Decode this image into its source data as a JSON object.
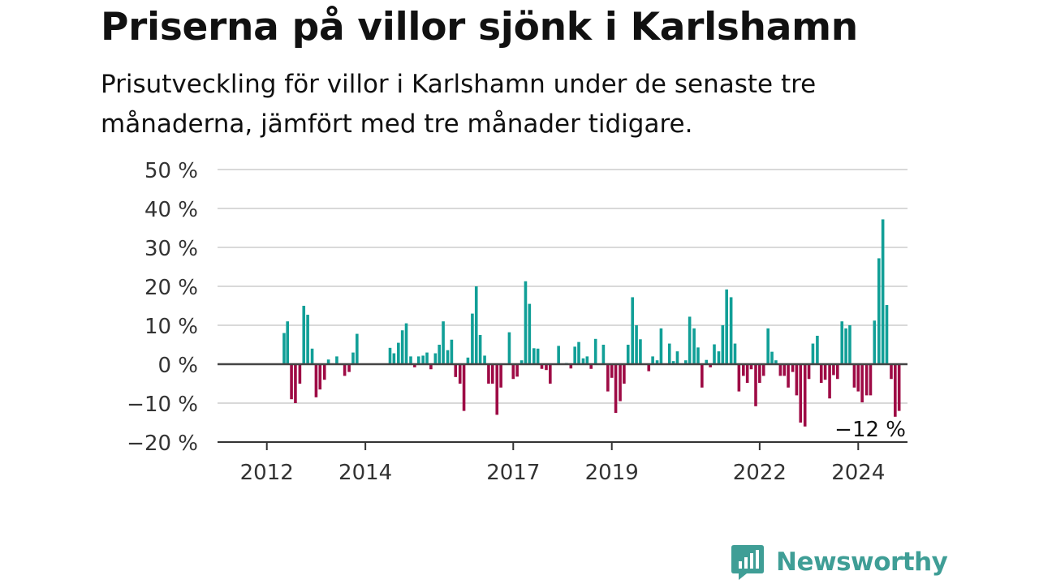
{
  "title": "Priserna på villor sjönk i Karlshamn",
  "subtitle": "Prisutveckling för villor i Karlshamn under de senaste tre månaderna, jämfört med tre månader tidigare.",
  "brand": {
    "name": "Newsworthy",
    "color": "#3f9e96"
  },
  "colors": {
    "positive": "#119f97",
    "negative": "#9e0b45",
    "zero_line": "#444444",
    "grid": "#d9d9d9"
  },
  "chart_data": {
    "type": "bar",
    "grid": "horizontal",
    "ylim": [
      -20,
      50
    ],
    "y_ticks": [
      50,
      40,
      30,
      20,
      10,
      0,
      -10,
      -20
    ],
    "y_tick_labels": [
      "50 %",
      "40 %",
      "30 %",
      "20 %",
      "10 %",
      "0 %",
      "−10 %",
      "−20 %"
    ],
    "x_ticks": [
      {
        "label": "2012",
        "value": 2012.0
      },
      {
        "label": "2014",
        "value": 2014.0
      },
      {
        "label": "2017",
        "value": 2017.0
      },
      {
        "label": "2019",
        "value": 2019.0
      },
      {
        "label": "2022",
        "value": 2022.0
      },
      {
        "label": "2024",
        "value": 2024.0
      }
    ],
    "annotation": {
      "text": "−12 %",
      "value": -12
    },
    "values": [
      {
        "t": 2012.35,
        "v": 8
      },
      {
        "t": 2012.42,
        "v": 11
      },
      {
        "t": 2012.5,
        "v": -9
      },
      {
        "t": 2012.58,
        "v": -10
      },
      {
        "t": 2012.67,
        "v": -5
      },
      {
        "t": 2012.75,
        "v": 15
      },
      {
        "t": 2012.83,
        "v": 12.7
      },
      {
        "t": 2012.92,
        "v": 4
      },
      {
        "t": 2013.0,
        "v": -8.5
      },
      {
        "t": 2013.08,
        "v": -6.5
      },
      {
        "t": 2013.17,
        "v": -4
      },
      {
        "t": 2013.25,
        "v": 1.2
      },
      {
        "t": 2013.42,
        "v": 2
      },
      {
        "t": 2013.58,
        "v": -3
      },
      {
        "t": 2013.67,
        "v": -2
      },
      {
        "t": 2013.75,
        "v": 3
      },
      {
        "t": 2013.83,
        "v": 7.8
      },
      {
        "t": 2014.5,
        "v": 4.2
      },
      {
        "t": 2014.58,
        "v": 2.8
      },
      {
        "t": 2014.67,
        "v": 5.5
      },
      {
        "t": 2014.75,
        "v": 8.7
      },
      {
        "t": 2014.83,
        "v": 10.5
      },
      {
        "t": 2014.92,
        "v": 2
      },
      {
        "t": 2015.0,
        "v": -0.8
      },
      {
        "t": 2015.08,
        "v": 2
      },
      {
        "t": 2015.17,
        "v": 2.2
      },
      {
        "t": 2015.25,
        "v": 3
      },
      {
        "t": 2015.33,
        "v": -1.3
      },
      {
        "t": 2015.42,
        "v": 2.8
      },
      {
        "t": 2015.5,
        "v": 5
      },
      {
        "t": 2015.58,
        "v": 11
      },
      {
        "t": 2015.67,
        "v": 3.6
      },
      {
        "t": 2015.75,
        "v": 6.3
      },
      {
        "t": 2015.83,
        "v": -3.3
      },
      {
        "t": 2015.92,
        "v": -5
      },
      {
        "t": 2016.0,
        "v": -12
      },
      {
        "t": 2016.08,
        "v": 1.7
      },
      {
        "t": 2016.17,
        "v": 13
      },
      {
        "t": 2016.25,
        "v": 20
      },
      {
        "t": 2016.33,
        "v": 7.5
      },
      {
        "t": 2016.42,
        "v": 2.2
      },
      {
        "t": 2016.5,
        "v": -5
      },
      {
        "t": 2016.58,
        "v": -5
      },
      {
        "t": 2016.67,
        "v": -13
      },
      {
        "t": 2016.75,
        "v": -6
      },
      {
        "t": 2016.92,
        "v": 8.2
      },
      {
        "t": 2017.0,
        "v": -3.8
      },
      {
        "t": 2017.08,
        "v": -3.2
      },
      {
        "t": 2017.17,
        "v": 1
      },
      {
        "t": 2017.25,
        "v": 21.3
      },
      {
        "t": 2017.33,
        "v": 15.5
      },
      {
        "t": 2017.42,
        "v": 4.1
      },
      {
        "t": 2017.5,
        "v": 4
      },
      {
        "t": 2017.58,
        "v": -1.2
      },
      {
        "t": 2017.67,
        "v": -1.5
      },
      {
        "t": 2017.75,
        "v": -5
      },
      {
        "t": 2017.92,
        "v": 4.7
      },
      {
        "t": 2018.08,
        "v": 0.3
      },
      {
        "t": 2018.17,
        "v": -1.1
      },
      {
        "t": 2018.25,
        "v": 4.5
      },
      {
        "t": 2018.33,
        "v": 5.7
      },
      {
        "t": 2018.42,
        "v": 1.5
      },
      {
        "t": 2018.5,
        "v": 2
      },
      {
        "t": 2018.58,
        "v": -1.2
      },
      {
        "t": 2018.67,
        "v": 6.5
      },
      {
        "t": 2018.83,
        "v": 5
      },
      {
        "t": 2018.92,
        "v": -7
      },
      {
        "t": 2019.0,
        "v": -3.5
      },
      {
        "t": 2019.08,
        "v": -12.5
      },
      {
        "t": 2019.17,
        "v": -9.5
      },
      {
        "t": 2019.25,
        "v": -5
      },
      {
        "t": 2019.33,
        "v": 5
      },
      {
        "t": 2019.42,
        "v": 17.2
      },
      {
        "t": 2019.5,
        "v": 10
      },
      {
        "t": 2019.58,
        "v": 6.4
      },
      {
        "t": 2019.75,
        "v": -1.8
      },
      {
        "t": 2019.83,
        "v": 2
      },
      {
        "t": 2019.92,
        "v": 1
      },
      {
        "t": 2020.0,
        "v": 9.2
      },
      {
        "t": 2020.17,
        "v": 5.3
      },
      {
        "t": 2020.25,
        "v": 0.8
      },
      {
        "t": 2020.33,
        "v": 3.3
      },
      {
        "t": 2020.5,
        "v": 1
      },
      {
        "t": 2020.58,
        "v": 12.2
      },
      {
        "t": 2020.67,
        "v": 9.2
      },
      {
        "t": 2020.75,
        "v": 4.3
      },
      {
        "t": 2020.83,
        "v": -6
      },
      {
        "t": 2020.92,
        "v": 1.1
      },
      {
        "t": 2021.0,
        "v": -0.8
      },
      {
        "t": 2021.08,
        "v": 5.1
      },
      {
        "t": 2021.17,
        "v": 3.3
      },
      {
        "t": 2021.25,
        "v": 10
      },
      {
        "t": 2021.33,
        "v": 19.2
      },
      {
        "t": 2021.42,
        "v": 17.2
      },
      {
        "t": 2021.5,
        "v": 5.3
      },
      {
        "t": 2021.58,
        "v": -7
      },
      {
        "t": 2021.67,
        "v": -3
      },
      {
        "t": 2021.75,
        "v": -4.8
      },
      {
        "t": 2021.83,
        "v": -1.3
      },
      {
        "t": 2021.92,
        "v": -10.8
      },
      {
        "t": 2022.0,
        "v": -4.8
      },
      {
        "t": 2022.08,
        "v": -3
      },
      {
        "t": 2022.17,
        "v": 9.2
      },
      {
        "t": 2022.25,
        "v": 3.2
      },
      {
        "t": 2022.33,
        "v": 1
      },
      {
        "t": 2022.42,
        "v": -3
      },
      {
        "t": 2022.5,
        "v": -3
      },
      {
        "t": 2022.58,
        "v": -6
      },
      {
        "t": 2022.67,
        "v": -2
      },
      {
        "t": 2022.75,
        "v": -8
      },
      {
        "t": 2022.83,
        "v": -15
      },
      {
        "t": 2022.92,
        "v": -16
      },
      {
        "t": 2023.0,
        "v": -3.8
      },
      {
        "t": 2023.08,
        "v": 5.3
      },
      {
        "t": 2023.17,
        "v": 7.3
      },
      {
        "t": 2023.25,
        "v": -4.8
      },
      {
        "t": 2023.33,
        "v": -4
      },
      {
        "t": 2023.42,
        "v": -8.8
      },
      {
        "t": 2023.5,
        "v": -2.8
      },
      {
        "t": 2023.58,
        "v": -3.8
      },
      {
        "t": 2023.67,
        "v": 11
      },
      {
        "t": 2023.75,
        "v": 9.2
      },
      {
        "t": 2023.83,
        "v": 10
      },
      {
        "t": 2023.92,
        "v": -6
      },
      {
        "t": 2024.0,
        "v": -7
      },
      {
        "t": 2024.08,
        "v": -9.8
      },
      {
        "t": 2024.17,
        "v": -8
      },
      {
        "t": 2024.25,
        "v": -8
      },
      {
        "t": 2024.33,
        "v": 11.2
      },
      {
        "t": 2024.42,
        "v": 27.2
      },
      {
        "t": 2024.5,
        "v": 37.2
      },
      {
        "t": 2024.58,
        "v": 15.2
      },
      {
        "t": 2024.67,
        "v": -3.8
      },
      {
        "t": 2024.75,
        "v": -13.5
      },
      {
        "t": 2024.83,
        "v": -12
      }
    ]
  }
}
